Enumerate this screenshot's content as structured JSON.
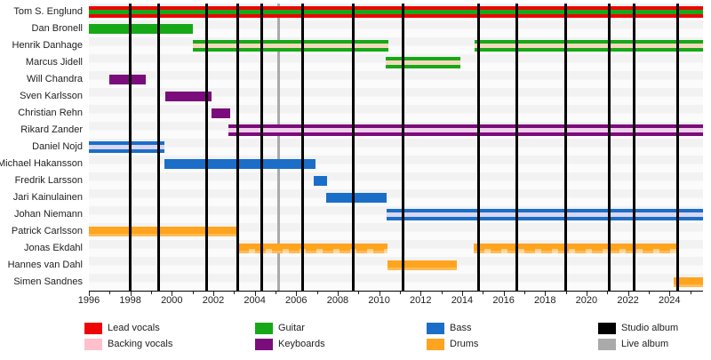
{
  "chart_data": {
    "type": "timeline",
    "description": "Band members timeline (gantt-style) with role bars per member and album release lines",
    "axis": {
      "start_year": 1996,
      "end_year": 2025.6,
      "tick_interval": 1,
      "label_years": [
        1996,
        1998,
        2000,
        2002,
        2004,
        2006,
        2008,
        2010,
        2012,
        2014,
        2016,
        2018,
        2020,
        2022,
        2024
      ]
    },
    "colors": {
      "lead_vocals": "#ee0404",
      "backing_vocals": "#ffc0cb",
      "guitar": "#17a817",
      "keyboards": "#7b0c7b",
      "bass": "#1b6ec8",
      "drums": "#ffa41e",
      "studio_album": "#000000",
      "live_album": "#aaaaaa"
    },
    "backing_stripe_colors": {
      "guitar": "#f6d9bd",
      "keyboards": "#efcfe9",
      "bass": "#dbd6f2"
    },
    "members": [
      {
        "name": "Tom S. Englund",
        "bars": [
          {
            "start": 1996.0,
            "end": 2025.6,
            "role": "lead_vocals",
            "stripe": "guitar"
          }
        ]
      },
      {
        "name": "Dan Bronell",
        "bars": [
          {
            "start": 1996.0,
            "end": 2001.0,
            "role": "guitar"
          }
        ]
      },
      {
        "name": "Henrik Danhage",
        "bars": [
          {
            "start": 2001.0,
            "end": 2010.45,
            "role": "guitar",
            "stripe": "backing_vocals"
          },
          {
            "start": 2014.6,
            "end": 2025.6,
            "role": "guitar",
            "stripe": "backing_vocals"
          }
        ]
      },
      {
        "name": "Marcus Jidell",
        "bars": [
          {
            "start": 2010.3,
            "end": 2013.9,
            "role": "guitar",
            "stripe": "backing_vocals"
          }
        ]
      },
      {
        "name": "Will Chandra",
        "bars": [
          {
            "start": 1997.0,
            "end": 1998.75,
            "role": "keyboards"
          }
        ]
      },
      {
        "name": "Sven Karlsson",
        "bars": [
          {
            "start": 1999.7,
            "end": 2001.9,
            "role": "keyboards"
          }
        ]
      },
      {
        "name": "Christian Rehn",
        "bars": [
          {
            "start": 2001.9,
            "end": 2002.8,
            "role": "keyboards"
          }
        ]
      },
      {
        "name": "Rikard Zander",
        "bars": [
          {
            "start": 2002.75,
            "end": 2025.6,
            "role": "keyboards",
            "stripe": "backing_vocals"
          }
        ]
      },
      {
        "name": "Daniel Nojd",
        "bars": [
          {
            "start": 1996.0,
            "end": 1999.65,
            "role": "bass",
            "stripe": "backing_vocals"
          }
        ]
      },
      {
        "name": "Michael Hakansson",
        "bars": [
          {
            "start": 1999.65,
            "end": 2006.95,
            "role": "bass"
          }
        ]
      },
      {
        "name": "Fredrik Larsson",
        "bars": [
          {
            "start": 2006.85,
            "end": 2007.5,
            "role": "bass"
          }
        ]
      },
      {
        "name": "Jari Kainulainen",
        "bars": [
          {
            "start": 2007.45,
            "end": 2010.35,
            "role": "bass"
          }
        ]
      },
      {
        "name": "Johan Niemann",
        "bars": [
          {
            "start": 2010.35,
            "end": 2025.6,
            "role": "bass",
            "stripe": "backing_vocals"
          }
        ]
      },
      {
        "name": "Patrick Carlsson",
        "bars": [
          {
            "start": 1996.0,
            "end": 2003.2,
            "role": "drums"
          }
        ]
      },
      {
        "name": "Jonas Ekdahl",
        "bars": [
          {
            "start": 2003.2,
            "end": 2010.4,
            "role": "drums",
            "dashed": true
          },
          {
            "start": 2014.55,
            "end": 2024.4,
            "role": "drums",
            "dashed": true
          }
        ]
      },
      {
        "name": "Hannes van Dahl",
        "bars": [
          {
            "start": 2010.4,
            "end": 2013.75,
            "role": "drums"
          }
        ]
      },
      {
        "name": "Simen Sandnes",
        "bars": [
          {
            "start": 2024.2,
            "end": 2025.6,
            "role": "drums"
          }
        ]
      }
    ],
    "albums": {
      "studio": [
        1998.0,
        1999.35,
        2001.7,
        2003.2,
        2004.35,
        2006.3,
        2008.75,
        2011.15,
        2014.8,
        2016.65,
        2019.0,
        2021.1,
        2022.3,
        2024.4
      ],
      "live": [
        2005.15
      ]
    }
  },
  "legend": {
    "items": [
      {
        "label": "Lead vocals",
        "color": "#ee0404"
      },
      {
        "label": "Backing vocals",
        "color": "#ffc0cb"
      },
      {
        "label": "Guitar",
        "color": "#17a817"
      },
      {
        "label": "Keyboards",
        "color": "#7b0c7b"
      },
      {
        "label": "Bass",
        "color": "#1b6ec8"
      },
      {
        "label": "Drums",
        "color": "#ffa41e"
      },
      {
        "label": "Studio album",
        "color": "#000000"
      },
      {
        "label": "Live album",
        "color": "#aaaaaa"
      }
    ]
  }
}
